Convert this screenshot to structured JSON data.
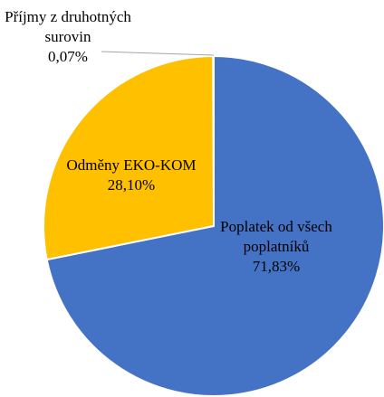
{
  "chart_data": {
    "type": "pie",
    "categories": [
      "Poplatek od všech poplatníků",
      "Odměny EKO-KOM",
      "Příjmy z druhotných surovin"
    ],
    "values": [
      71.83,
      28.1,
      0.07
    ],
    "value_labels": [
      "71,83%",
      "28,10%",
      "0,07%"
    ],
    "colors": [
      "#4472c4",
      "#ffc000",
      "#a5a5a5"
    ]
  }
}
